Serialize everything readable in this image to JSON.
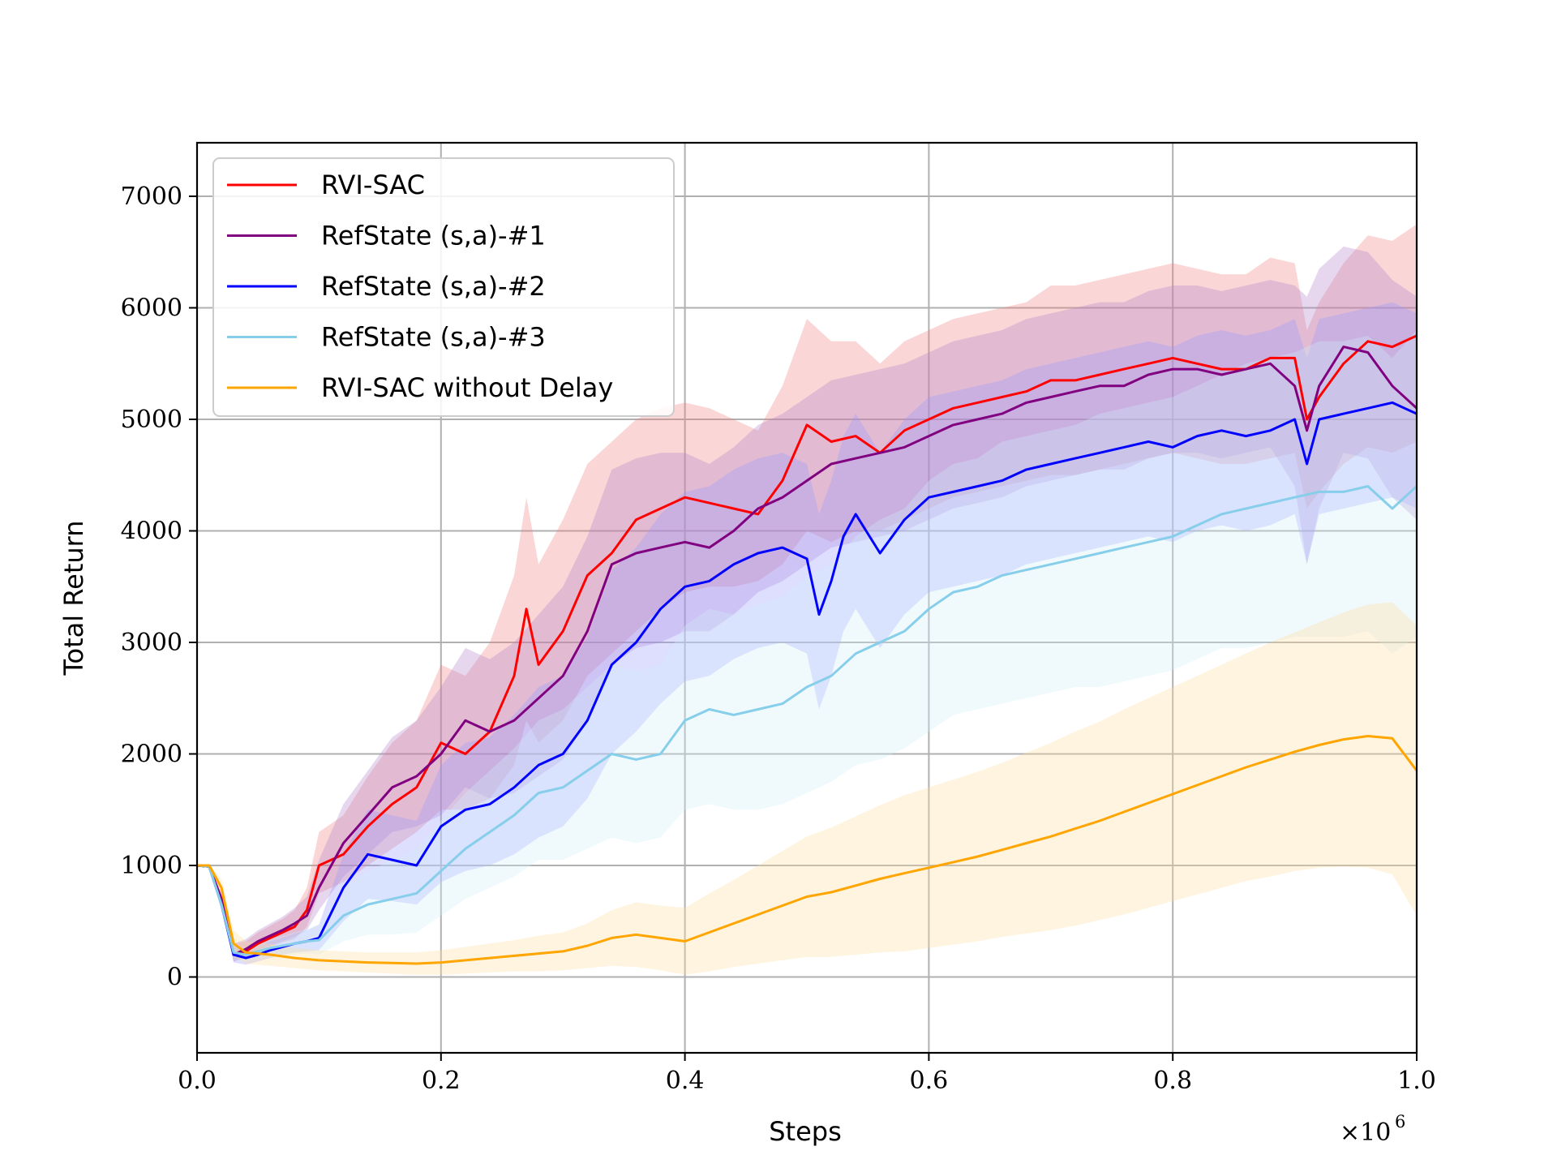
{
  "chart_data": {
    "type": "line",
    "title": "",
    "xlabel": "Steps",
    "ylabel": "Total Return",
    "x_scale_label": "×10",
    "x_scale_exponent": "6",
    "xlim": [
      0.0,
      1.0
    ],
    "ylim": [
      -680,
      7480
    ],
    "x_ticks": [
      0.0,
      0.2,
      0.4,
      0.6,
      0.8,
      1.0
    ],
    "x_tick_labels": [
      "0.0",
      "0.2",
      "0.4",
      "0.6",
      "0.8",
      "1.0"
    ],
    "y_ticks": [
      0,
      1000,
      2000,
      3000,
      4000,
      5000,
      6000,
      7000
    ],
    "y_tick_labels": [
      "0",
      "1000",
      "2000",
      "3000",
      "4000",
      "5000",
      "6000",
      "7000"
    ],
    "grid": true,
    "legend_position": "top-left",
    "series": [
      {
        "name": "RVI-SAC",
        "color": "#ff0000",
        "band_color": "#f08080",
        "x": [
          0.0,
          0.01,
          0.02,
          0.03,
          0.04,
          0.05,
          0.06,
          0.07,
          0.08,
          0.09,
          0.1,
          0.12,
          0.14,
          0.16,
          0.18,
          0.2,
          0.22,
          0.24,
          0.26,
          0.27,
          0.28,
          0.3,
          0.32,
          0.34,
          0.36,
          0.38,
          0.4,
          0.42,
          0.44,
          0.46,
          0.48,
          0.5,
          0.52,
          0.54,
          0.56,
          0.58,
          0.6,
          0.62,
          0.64,
          0.66,
          0.68,
          0.7,
          0.72,
          0.74,
          0.76,
          0.78,
          0.8,
          0.82,
          0.84,
          0.86,
          0.88,
          0.9,
          0.91,
          0.92,
          0.94,
          0.96,
          0.98,
          1.0
        ],
        "y": [
          1000,
          990,
          700,
          200,
          230,
          300,
          350,
          400,
          450,
          600,
          1000,
          1100,
          1350,
          1550,
          1700,
          2100,
          2000,
          2200,
          2700,
          3300,
          2800,
          3100,
          3600,
          3800,
          4100,
          4200,
          4300,
          4250,
          4200,
          4150,
          4450,
          4950,
          4800,
          4850,
          4700,
          4900,
          5000,
          5100,
          5150,
          5200,
          5250,
          5350,
          5350,
          5400,
          5450,
          5500,
          5550,
          5500,
          5450,
          5450,
          5550,
          5550,
          5000,
          5200,
          5500,
          5700,
          5650,
          5750
        ],
        "band_low": [
          1000,
          980,
          650,
          140,
          170,
          230,
          270,
          310,
          340,
          450,
          750,
          850,
          1000,
          1150,
          1300,
          1500,
          1500,
          1600,
          1900,
          2300,
          2100,
          2300,
          2700,
          2900,
          3100,
          3300,
          3450,
          3500,
          3500,
          3550,
          3700,
          4000,
          3900,
          4000,
          4000,
          4100,
          4200,
          4300,
          4350,
          4400,
          4450,
          4500,
          4500,
          4550,
          4600,
          4650,
          4700,
          4650,
          4600,
          4600,
          4650,
          4700,
          4200,
          4350,
          4600,
          4750,
          4700,
          4800
        ],
        "band_high": [
          1000,
          1000,
          750,
          300,
          320,
          400,
          460,
          520,
          600,
          800,
          1300,
          1450,
          1800,
          2100,
          2300,
          2800,
          2700,
          3000,
          3600,
          4300,
          3700,
          4100,
          4600,
          4800,
          5000,
          5100,
          5150,
          5100,
          5000,
          4900,
          5300,
          5900,
          5700,
          5700,
          5500,
          5700,
          5800,
          5900,
          5950,
          6000,
          6050,
          6200,
          6200,
          6250,
          6300,
          6350,
          6400,
          6350,
          6300,
          6300,
          6450,
          6400,
          5800,
          6050,
          6400,
          6650,
          6600,
          6750
        ]
      },
      {
        "name": "RefState (s,a)-#1",
        "color": "#800080",
        "band_color": "#b084cc",
        "x": [
          0.0,
          0.01,
          0.02,
          0.03,
          0.04,
          0.05,
          0.06,
          0.07,
          0.08,
          0.09,
          0.1,
          0.12,
          0.14,
          0.16,
          0.18,
          0.2,
          0.22,
          0.24,
          0.26,
          0.28,
          0.3,
          0.32,
          0.34,
          0.36,
          0.38,
          0.4,
          0.42,
          0.44,
          0.46,
          0.48,
          0.5,
          0.52,
          0.54,
          0.56,
          0.58,
          0.6,
          0.62,
          0.64,
          0.66,
          0.68,
          0.7,
          0.72,
          0.74,
          0.76,
          0.78,
          0.8,
          0.82,
          0.84,
          0.86,
          0.88,
          0.9,
          0.91,
          0.92,
          0.94,
          0.96,
          0.98,
          1.0
        ],
        "y": [
          1000,
          990,
          700,
          200,
          250,
          320,
          370,
          420,
          480,
          550,
          800,
          1200,
          1450,
          1700,
          1800,
          2000,
          2300,
          2200,
          2300,
          2500,
          2700,
          3100,
          3700,
          3800,
          3850,
          3900,
          3850,
          4000,
          4200,
          4300,
          4450,
          4600,
          4650,
          4700,
          4750,
          4850,
          4950,
          5000,
          5050,
          5150,
          5200,
          5250,
          5300,
          5300,
          5400,
          5450,
          5450,
          5400,
          5450,
          5500,
          5300,
          4900,
          5300,
          5650,
          5600,
          5300,
          5100
        ],
        "band_low": [
          1000,
          980,
          650,
          140,
          180,
          240,
          280,
          320,
          360,
          420,
          600,
          900,
          1100,
          1300,
          1350,
          1450,
          1700,
          1600,
          1650,
          1800,
          1950,
          2300,
          2800,
          2950,
          3000,
          3100,
          3100,
          3250,
          3450,
          3550,
          3700,
          3850,
          3900,
          3950,
          4000,
          4100,
          4200,
          4250,
          4300,
          4400,
          4450,
          4500,
          4550,
          4550,
          4650,
          4700,
          4700,
          4650,
          4700,
          4750,
          4400,
          3700,
          4200,
          4700,
          4650,
          4300,
          4100
        ],
        "band_high": [
          1000,
          1000,
          750,
          300,
          340,
          420,
          480,
          540,
          620,
          720,
          1050,
          1550,
          1850,
          2150,
          2300,
          2600,
          2950,
          2850,
          3000,
          3250,
          3500,
          3950,
          4550,
          4650,
          4700,
          4700,
          4600,
          4750,
          4950,
          5050,
          5200,
          5350,
          5400,
          5450,
          5500,
          5600,
          5700,
          5750,
          5800,
          5900,
          5950,
          6000,
          6050,
          6050,
          6150,
          6200,
          6200,
          6150,
          6200,
          6250,
          6200,
          6100,
          6350,
          6550,
          6500,
          6250,
          6100
        ]
      },
      {
        "name": "RefState (s,a)-#2",
        "color": "#0000ff",
        "band_color": "#9999ff",
        "x": [
          0.0,
          0.01,
          0.02,
          0.03,
          0.04,
          0.05,
          0.06,
          0.07,
          0.08,
          0.09,
          0.1,
          0.12,
          0.14,
          0.16,
          0.18,
          0.2,
          0.22,
          0.24,
          0.26,
          0.28,
          0.3,
          0.32,
          0.34,
          0.36,
          0.38,
          0.4,
          0.42,
          0.44,
          0.46,
          0.48,
          0.5,
          0.51,
          0.52,
          0.53,
          0.54,
          0.56,
          0.58,
          0.6,
          0.62,
          0.64,
          0.66,
          0.68,
          0.7,
          0.72,
          0.74,
          0.76,
          0.78,
          0.8,
          0.82,
          0.84,
          0.86,
          0.88,
          0.9,
          0.91,
          0.92,
          0.94,
          0.96,
          0.98,
          1.0
        ],
        "y": [
          1000,
          990,
          650,
          200,
          170,
          200,
          240,
          270,
          300,
          320,
          350,
          800,
          1100,
          1050,
          1000,
          1350,
          1500,
          1550,
          1700,
          1900,
          2000,
          2300,
          2800,
          3000,
          3300,
          3500,
          3550,
          3700,
          3800,
          3850,
          3750,
          3250,
          3550,
          3950,
          4150,
          3800,
          4100,
          4300,
          4350,
          4400,
          4450,
          4550,
          4600,
          4650,
          4700,
          4750,
          4800,
          4750,
          4850,
          4900,
          4850,
          4900,
          5000,
          4600,
          5000,
          5050,
          5100,
          5150,
          5050
        ],
        "band_low": [
          1000,
          980,
          600,
          130,
          110,
          140,
          170,
          200,
          220,
          230,
          240,
          500,
          700,
          680,
          650,
          850,
          950,
          1000,
          1100,
          1250,
          1350,
          1600,
          2000,
          2200,
          2450,
          2650,
          2700,
          2850,
          2950,
          3000,
          2900,
          2400,
          2700,
          3100,
          3300,
          2950,
          3250,
          3450,
          3500,
          3550,
          3600,
          3700,
          3750,
          3800,
          3850,
          3900,
          3950,
          3900,
          4000,
          4050,
          4000,
          4050,
          4150,
          3700,
          4150,
          4200,
          4250,
          4300,
          4200
        ],
        "band_high": [
          1000,
          1000,
          700,
          280,
          250,
          280,
          320,
          350,
          390,
          420,
          470,
          1100,
          1500,
          1450,
          1400,
          1900,
          2100,
          2150,
          2350,
          2600,
          2700,
          3050,
          3650,
          3850,
          4150,
          4350,
          4400,
          4550,
          4650,
          4700,
          4600,
          4150,
          4450,
          4850,
          5050,
          4700,
          5000,
          5200,
          5250,
          5300,
          5350,
          5450,
          5500,
          5550,
          5600,
          5650,
          5700,
          5650,
          5750,
          5800,
          5750,
          5800,
          5900,
          5550,
          5900,
          5950,
          6000,
          6050,
          5950
        ]
      },
      {
        "name": "RefState (s,a)-#3",
        "color": "#87ceeb",
        "band_color": "#cfeef8",
        "x": [
          0.0,
          0.01,
          0.02,
          0.03,
          0.04,
          0.05,
          0.06,
          0.07,
          0.08,
          0.09,
          0.1,
          0.12,
          0.14,
          0.16,
          0.18,
          0.2,
          0.22,
          0.24,
          0.26,
          0.28,
          0.3,
          0.32,
          0.34,
          0.36,
          0.38,
          0.4,
          0.42,
          0.44,
          0.46,
          0.48,
          0.5,
          0.52,
          0.54,
          0.56,
          0.58,
          0.6,
          0.62,
          0.64,
          0.66,
          0.68,
          0.7,
          0.72,
          0.74,
          0.76,
          0.78,
          0.8,
          0.82,
          0.84,
          0.86,
          0.88,
          0.9,
          0.92,
          0.94,
          0.96,
          0.98,
          1.0
        ],
        "y": [
          1000,
          990,
          650,
          220,
          200,
          230,
          260,
          280,
          300,
          320,
          330,
          550,
          650,
          700,
          750,
          950,
          1150,
          1300,
          1450,
          1650,
          1700,
          1850,
          2000,
          1950,
          2000,
          2300,
          2400,
          2350,
          2400,
          2450,
          2600,
          2700,
          2900,
          3000,
          3100,
          3300,
          3450,
          3500,
          3600,
          3650,
          3700,
          3750,
          3800,
          3850,
          3900,
          3950,
          4050,
          4150,
          4200,
          4250,
          4300,
          4350,
          4350,
          4400,
          4200,
          4400
        ],
        "band_low": [
          1000,
          980,
          600,
          150,
          140,
          160,
          180,
          190,
          200,
          210,
          200,
          320,
          380,
          380,
          400,
          550,
          700,
          800,
          900,
          1050,
          1050,
          1150,
          1250,
          1200,
          1250,
          1500,
          1550,
          1500,
          1500,
          1550,
          1650,
          1750,
          1900,
          1950,
          2050,
          2200,
          2350,
          2400,
          2450,
          2500,
          2550,
          2600,
          2600,
          2650,
          2700,
          2750,
          2850,
          2950,
          2950,
          3000,
          3050,
          3050,
          3050,
          3100,
          2900,
          3050
        ],
        "band_high": [
          1000,
          1000,
          700,
          290,
          260,
          300,
          340,
          370,
          400,
          430,
          470,
          800,
          950,
          1050,
          1150,
          1400,
          1650,
          1850,
          2050,
          2300,
          2400,
          2600,
          2800,
          2750,
          2800,
          3150,
          3300,
          3250,
          3350,
          3400,
          3600,
          3700,
          3950,
          4100,
          4200,
          4450,
          4600,
          4650,
          4800,
          4850,
          4900,
          4950,
          5050,
          5100,
          5150,
          5200,
          5300,
          5400,
          5500,
          5550,
          5600,
          5700,
          5700,
          5750,
          5550,
          5800
        ]
      },
      {
        "name": "RVI-SAC without Delay",
        "color": "#ffa500",
        "band_color": "#ffdca0",
        "x": [
          0.0,
          0.01,
          0.02,
          0.03,
          0.04,
          0.05,
          0.06,
          0.08,
          0.1,
          0.12,
          0.14,
          0.16,
          0.18,
          0.2,
          0.22,
          0.24,
          0.26,
          0.28,
          0.3,
          0.32,
          0.34,
          0.36,
          0.38,
          0.4,
          0.42,
          0.44,
          0.46,
          0.48,
          0.5,
          0.52,
          0.54,
          0.56,
          0.58,
          0.6,
          0.62,
          0.64,
          0.66,
          0.68,
          0.7,
          0.72,
          0.74,
          0.76,
          0.78,
          0.8,
          0.82,
          0.84,
          0.86,
          0.88,
          0.9,
          0.92,
          0.94,
          0.96,
          0.98,
          1.0
        ],
        "y": [
          1000,
          1000,
          800,
          300,
          220,
          210,
          200,
          170,
          150,
          140,
          130,
          125,
          120,
          130,
          150,
          170,
          190,
          210,
          230,
          280,
          350,
          380,
          350,
          320,
          400,
          480,
          560,
          640,
          720,
          760,
          820,
          880,
          930,
          980,
          1030,
          1080,
          1140,
          1200,
          1260,
          1330,
          1400,
          1480,
          1560,
          1640,
          1720,
          1800,
          1880,
          1950,
          2020,
          2080,
          2130,
          2160,
          2140,
          1850
        ],
        "band_low": [
          1000,
          990,
          720,
          180,
          120,
          110,
          100,
          80,
          60,
          50,
          40,
          30,
          20,
          20,
          30,
          40,
          50,
          50,
          60,
          80,
          100,
          90,
          60,
          20,
          50,
          90,
          120,
          150,
          180,
          180,
          200,
          220,
          230,
          260,
          290,
          320,
          360,
          390,
          420,
          460,
          510,
          560,
          620,
          680,
          740,
          800,
          860,
          900,
          950,
          980,
          990,
          980,
          920,
          550
        ],
        "band_high": [
          1000,
          1010,
          880,
          420,
          320,
          310,
          300,
          260,
          240,
          230,
          220,
          220,
          220,
          240,
          270,
          300,
          330,
          370,
          400,
          480,
          600,
          670,
          640,
          620,
          750,
          870,
          1000,
          1130,
          1260,
          1340,
          1440,
          1540,
          1630,
          1700,
          1770,
          1840,
          1920,
          2010,
          2100,
          2200,
          2290,
          2400,
          2500,
          2600,
          2700,
          2800,
          2900,
          3000,
          3090,
          3180,
          3270,
          3340,
          3360,
          3150
        ]
      }
    ]
  }
}
